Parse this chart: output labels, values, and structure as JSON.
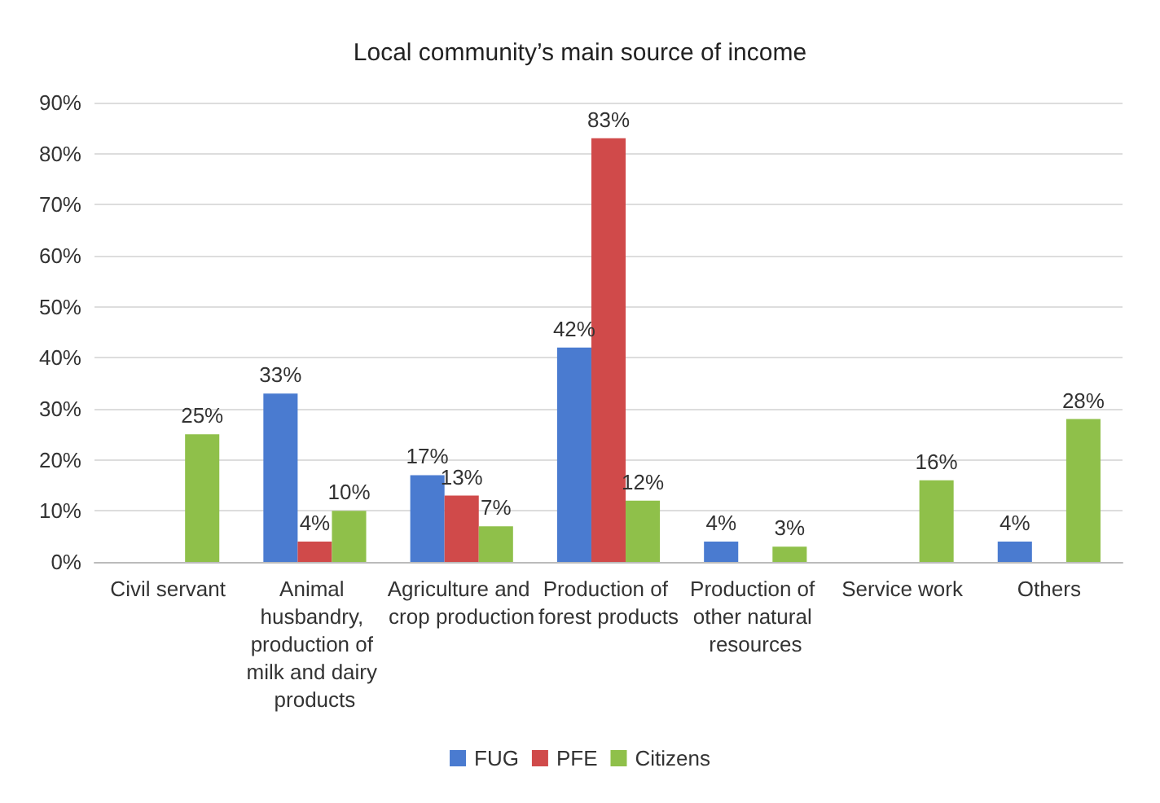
{
  "chart_data": {
    "type": "bar",
    "title": "Local community’s main source of income",
    "categories": [
      "Civil servant",
      "Animal husbandry, production of milk and dairy products",
      "Agriculture and crop production",
      "Production of forest products",
      "Production of other natural resources",
      "Service work",
      "Others"
    ],
    "series": [
      {
        "name": "FUG",
        "color": "#4a7bd0",
        "values": [
          null,
          33,
          17,
          42,
          4,
          null,
          4
        ],
        "value_labels": [
          null,
          "33%",
          "17%",
          "42%",
          "4%",
          null,
          "4%"
        ]
      },
      {
        "name": "PFE",
        "color": "#d04a4a",
        "values": [
          null,
          4,
          13,
          83,
          null,
          null,
          null
        ],
        "value_labels": [
          null,
          "4%",
          "13%",
          "83%",
          null,
          null,
          null
        ]
      },
      {
        "name": "Citizens",
        "color": "#8fc04a",
        "values": [
          25,
          10,
          7,
          12,
          3,
          16,
          28
        ],
        "value_labels": [
          "25%",
          "10%",
          "7%",
          "12%",
          "3%",
          "16%",
          "28%"
        ]
      }
    ],
    "ylim": [
      0,
      90
    ],
    "yticks": [
      {
        "value": 0,
        "label": "0%"
      },
      {
        "value": 10,
        "label": "10%"
      },
      {
        "value": 20,
        "label": "20%"
      },
      {
        "value": 30,
        "label": "30%"
      },
      {
        "value": 40,
        "label": "40%"
      },
      {
        "value": 50,
        "label": "50%"
      },
      {
        "value": 60,
        "label": "60%"
      },
      {
        "value": 70,
        "label": "70%"
      },
      {
        "value": 80,
        "label": "80%"
      },
      {
        "value": 90,
        "label": "90%"
      }
    ],
    "grid": "y",
    "legend": "bottom"
  }
}
